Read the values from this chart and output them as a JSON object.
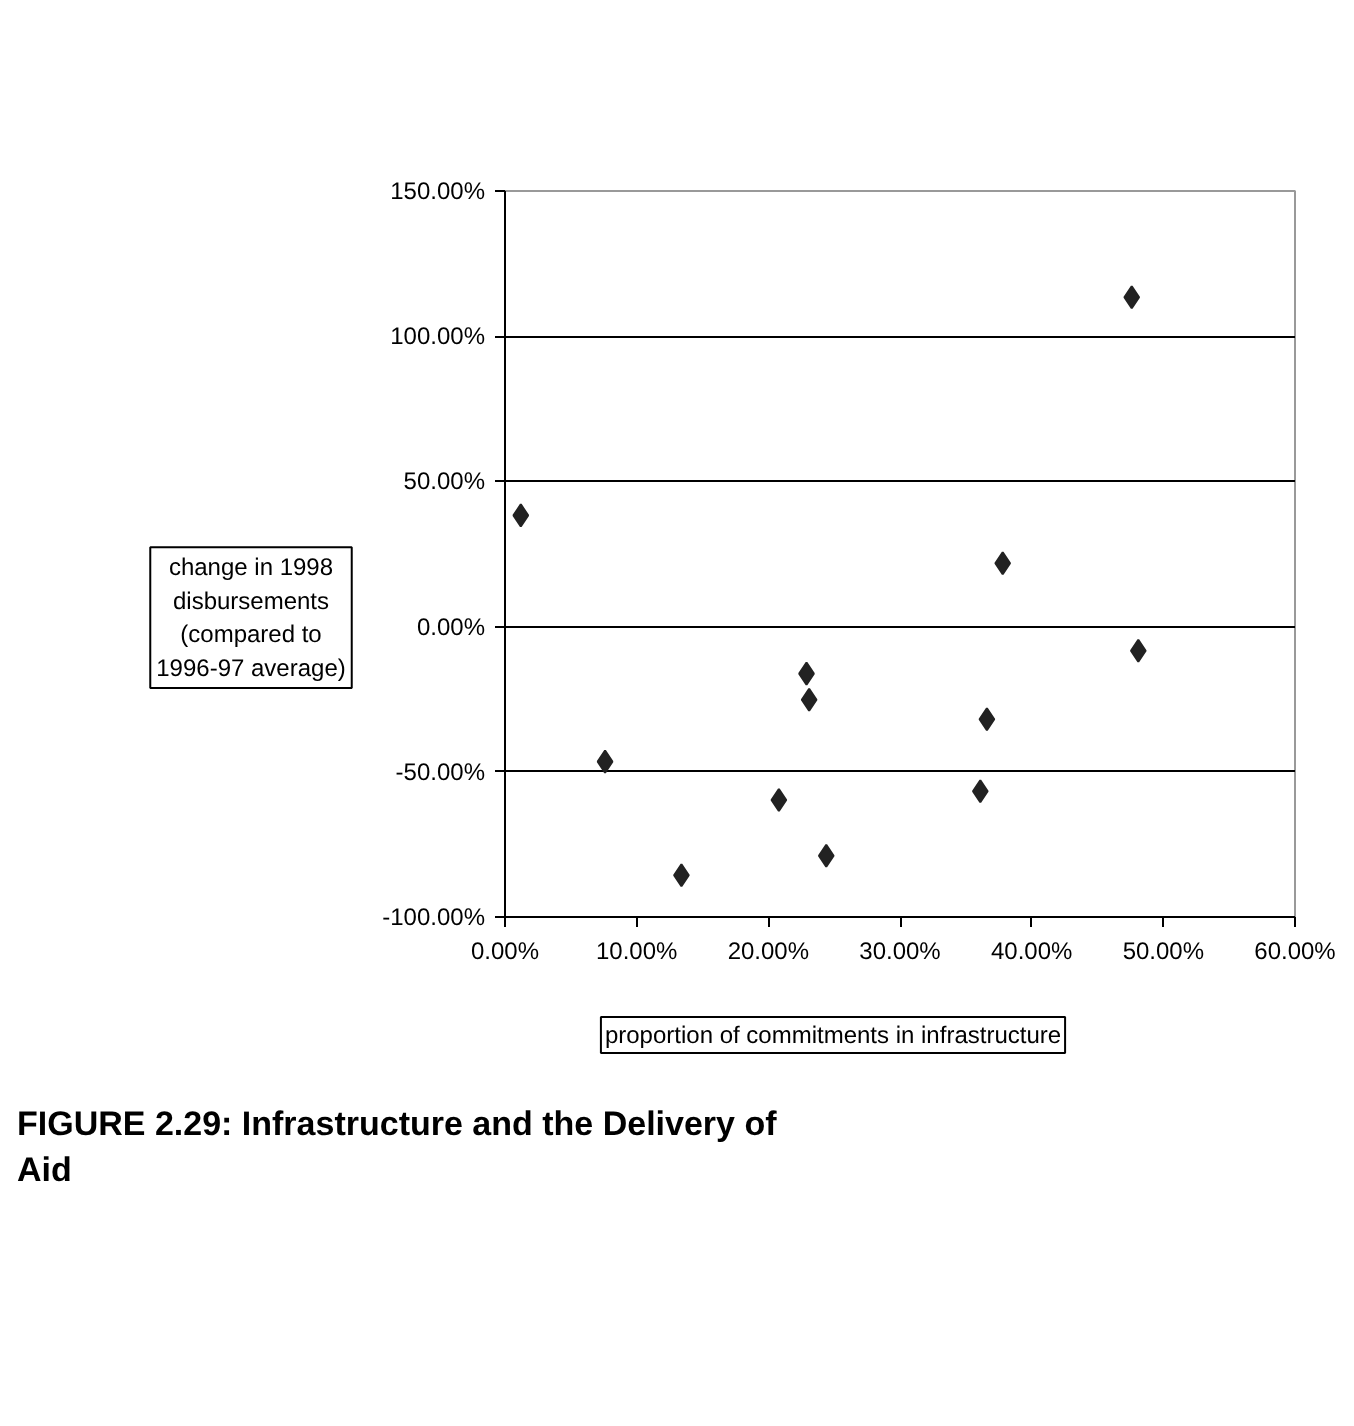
{
  "chart_data": {
    "type": "scatter",
    "title": "FIGURE 2.29: Infrastructure and the Delivery of Aid",
    "xlabel": "proportion of commitments in infrastructure",
    "ylabel": "change in 1998 disbursements (compared to 1996-97 average)",
    "x": [
      1.2,
      7.6,
      13.4,
      20.8,
      22.9,
      23.1,
      24.4,
      36.1,
      36.6,
      37.8,
      47.6,
      48.1
    ],
    "series": [
      {
        "color": "#222222",
        "values": [
          38.3,
          -46.5,
          -85.6,
          -59.7,
          -16.2,
          -25.2,
          -78.9,
          -56.7,
          -31.9,
          21.8,
          113.4,
          -8.3
        ]
      }
    ],
    "marker": "diamond",
    "xlim": [
      0,
      60
    ],
    "xticks": [
      {
        "value": 0,
        "label": "0.00%"
      },
      {
        "value": 10,
        "label": "10.00%"
      },
      {
        "value": 20,
        "label": "20.00%"
      },
      {
        "value": 30,
        "label": "30.00%"
      },
      {
        "value": 40,
        "label": "40.00%"
      },
      {
        "value": 50,
        "label": "50.00%"
      },
      {
        "value": 60,
        "label": "60.00%"
      }
    ],
    "ylim": [
      -100,
      150
    ],
    "yticks": [
      {
        "value": -100,
        "label": "-100.00%"
      },
      {
        "value": -50,
        "label": "-50.00%"
      },
      {
        "value": 0,
        "label": "0.00%"
      },
      {
        "value": 50,
        "label": "50.00%"
      },
      {
        "value": 100,
        "label": "100.00%"
      },
      {
        "value": 150,
        "label": "150.00%"
      }
    ],
    "grid": "y"
  }
}
